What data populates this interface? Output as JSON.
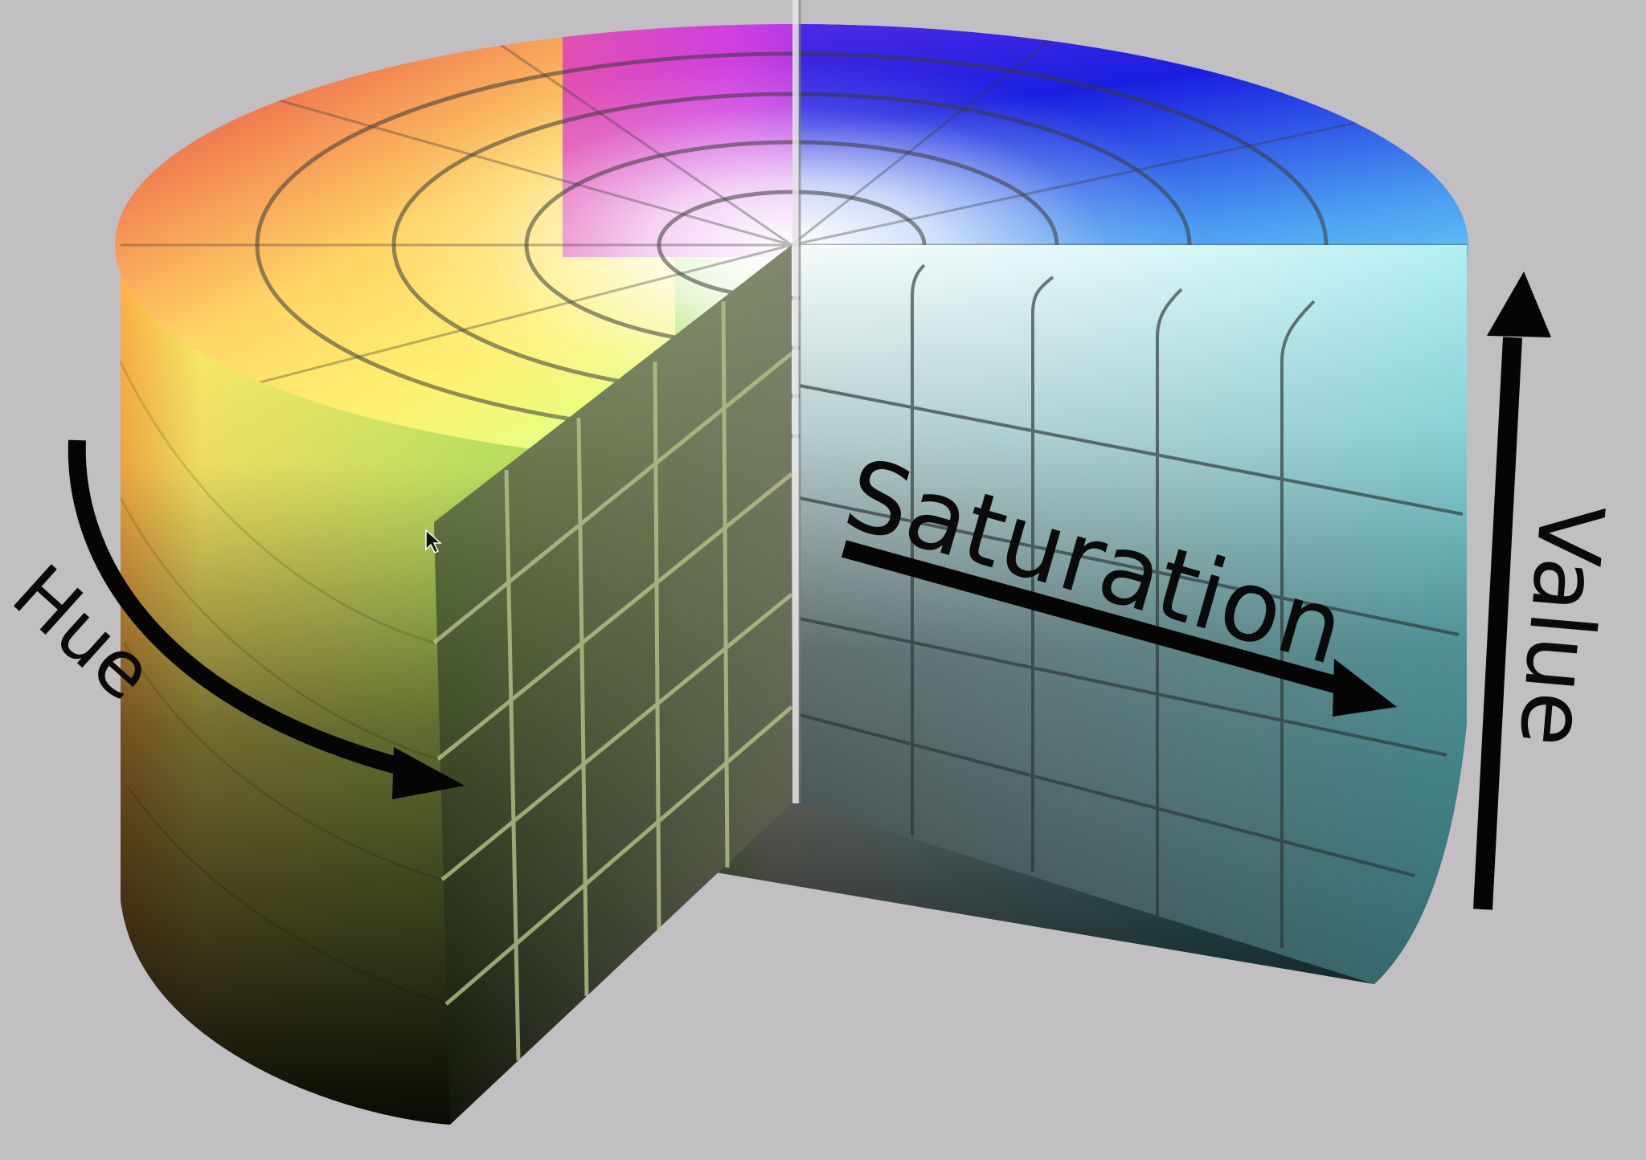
{
  "diagram": {
    "labels": {
      "hue": "Hue",
      "saturation": "Saturation",
      "value": "Value"
    },
    "colors": {
      "background": "#c1bfc1",
      "arrow": "#050505",
      "grid_line": "#3a3a3a",
      "cut_grid_line": "#b8c28a"
    },
    "icons": {
      "cursor": "mouse-pointer-icon"
    }
  }
}
